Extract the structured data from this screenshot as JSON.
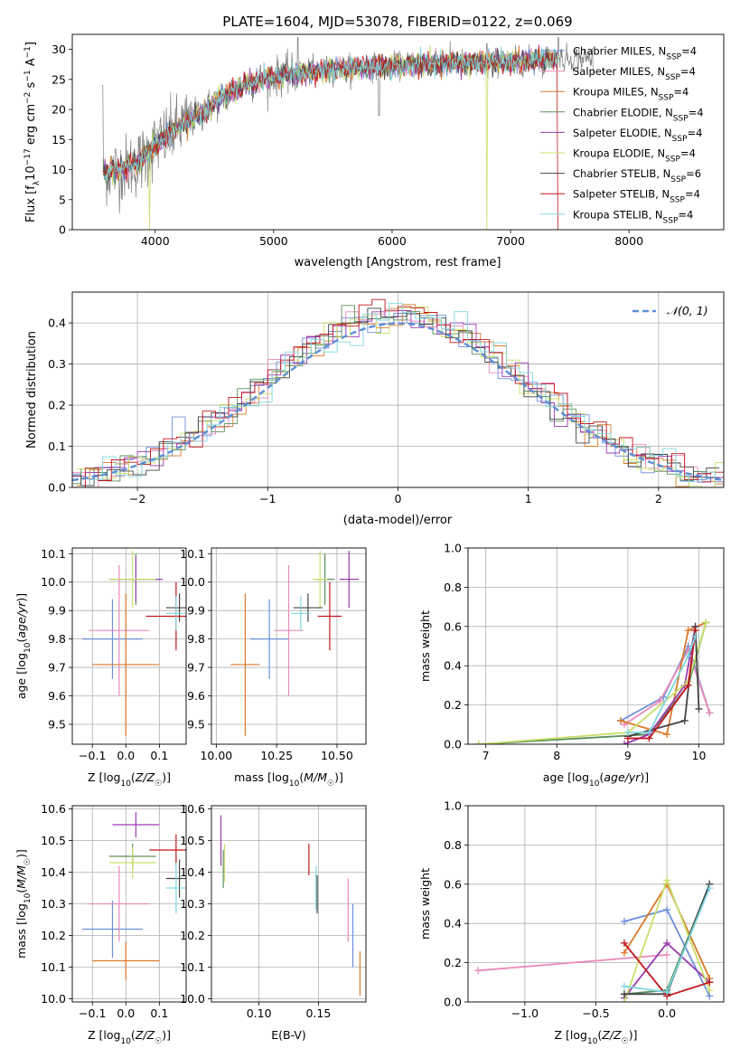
{
  "figure_title": "PLATE=1604, MJD=53078, FIBERID=0122, z=0.069",
  "models": [
    {
      "name": "Chabrier MILES",
      "nssp": "4",
      "color": "#6b8fd9"
    },
    {
      "name": "Salpeter MILES",
      "nssp": "4",
      "color": "#e88aba"
    },
    {
      "name": "Kroupa MILES",
      "nssp": "4",
      "color": "#d97a2b"
    },
    {
      "name": "Chabrier ELODIE",
      "nssp": "4",
      "color": "#5a8f5a"
    },
    {
      "name": "Salpeter ELODIE",
      "nssp": "4",
      "color": "#9b3bb0"
    },
    {
      "name": "Kroupa ELODIE",
      "nssp": "4",
      "color": "#c8e06a"
    },
    {
      "name": "Chabrier STELIB",
      "nssp": "6",
      "color": "#444444"
    },
    {
      "name": "Salpeter STELIB",
      "nssp": "4",
      "color": "#c0171c"
    },
    {
      "name": "Kroupa STELIB",
      "nssp": "4",
      "color": "#7fd6e0"
    }
  ],
  "chart_data": [
    {
      "id": "spectrum",
      "type": "line",
      "title": "PLATE=1604, MJD=53078, FIBERID=0122, z=0.069",
      "xlabel": "wavelength [Angstrom, rest frame]",
      "ylabel": "Flux [f_λ10^-17 erg cm^-2 s^-1 A^-1]",
      "xlim": [
        3300,
        8800
      ],
      "ylim": [
        0,
        32.5
      ],
      "xticks": [
        4000,
        5000,
        6000,
        7000,
        8000
      ],
      "yticks": [
        0,
        5,
        10,
        15,
        20,
        25,
        30
      ],
      "data_color": "#808080",
      "continuum": [
        [
          3550,
          9.5
        ],
        [
          3700,
          10
        ],
        [
          3850,
          11
        ],
        [
          4000,
          14
        ],
        [
          4200,
          17
        ],
        [
          4400,
          19.5
        ],
        [
          4600,
          22.5
        ],
        [
          4800,
          24.5
        ],
        [
          5000,
          25.5
        ],
        [
          5200,
          26
        ],
        [
          5500,
          26.8
        ],
        [
          6000,
          27.3
        ],
        [
          6500,
          27.8
        ],
        [
          7000,
          28
        ],
        [
          7400,
          28.5
        ]
      ],
      "model_end": 7400,
      "data_end": 7700,
      "drops": [
        [
          3950,
          3
        ],
        [
          6800,
          0
        ],
        [
          7400,
          0
        ]
      ]
    },
    {
      "id": "residuals",
      "type": "step",
      "xlabel": "(data-model)/error",
      "ylabel": "Normed distribution",
      "xlim": [
        -2.5,
        2.5
      ],
      "ylim": [
        0,
        0.475
      ],
      "xticks": [
        -2,
        -1,
        0,
        1,
        2
      ],
      "yticks": [
        0.0,
        0.1,
        0.2,
        0.3,
        0.4
      ],
      "bin_width": 0.1,
      "gaussian_label": "𝒩(0, 1)",
      "gaussian_color": "#5f8fd6"
    },
    {
      "id": "age_vs_Z",
      "type": "errorbar",
      "xlabel": "Z [log10(Z/Z☉)]",
      "ylabel": "age  [log10(age/yr)]",
      "xlim": [
        -0.16,
        0.18
      ],
      "ylim": [
        9.43,
        10.12
      ],
      "xticks": [
        -0.1,
        0.0,
        0.1
      ],
      "yticks": [
        9.5,
        9.6,
        9.7,
        9.8,
        9.9,
        10.0,
        10.1
      ],
      "points": [
        {
          "x": -0.04,
          "y": 9.8,
          "xerr": 0.09,
          "yerr": 0.14
        },
        {
          "x": -0.02,
          "y": 9.83,
          "xerr": 0.09,
          "yerr": 0.23
        },
        {
          "x": 0.0,
          "y": 9.71,
          "xerr": 0.1,
          "yerr": 0.25
        },
        {
          "x": 0.03,
          "y": 10.01,
          "xerr": 0.07,
          "yerr": 0.09
        },
        {
          "x": 0.03,
          "y": 10.01,
          "xerr": 0.08,
          "yerr": 0.08
        },
        {
          "x": 0.02,
          "y": 10.01,
          "xerr": 0.07,
          "yerr": 0.1
        },
        {
          "x": 0.16,
          "y": 9.91,
          "xerr": 0.04,
          "yerr": 0.05
        },
        {
          "x": 0.15,
          "y": 9.88,
          "xerr": 0.09,
          "yerr": 0.12
        },
        {
          "x": 0.15,
          "y": 9.89,
          "xerr": 0.03,
          "yerr": 0.06
        }
      ]
    },
    {
      "id": "age_vs_mass",
      "type": "errorbar",
      "xlabel": "mass [log10(M/M☉)]",
      "ylabel": "",
      "xlim": [
        9.98,
        10.62
      ],
      "ylim": [
        9.43,
        10.12
      ],
      "xticks": [
        10.0,
        10.25,
        10.5
      ],
      "yticks": [
        9.5,
        9.6,
        9.7,
        9.8,
        9.9,
        10.0,
        10.1
      ],
      "points": [
        {
          "x": 10.22,
          "y": 9.8,
          "xerr": 0.08,
          "yerr": 0.14
        },
        {
          "x": 10.3,
          "y": 9.83,
          "xerr": 0.06,
          "yerr": 0.23
        },
        {
          "x": 10.12,
          "y": 9.71,
          "xerr": 0.06,
          "yerr": 0.25
        },
        {
          "x": 10.45,
          "y": 10.01,
          "xerr": 0.04,
          "yerr": 0.09
        },
        {
          "x": 10.55,
          "y": 10.01,
          "xerr": 0.04,
          "yerr": 0.1
        },
        {
          "x": 10.43,
          "y": 10.01,
          "xerr": 0.03,
          "yerr": 0.1
        },
        {
          "x": 10.38,
          "y": 9.91,
          "xerr": 0.06,
          "yerr": 0.05
        },
        {
          "x": 10.47,
          "y": 9.88,
          "xerr": 0.05,
          "yerr": 0.12
        },
        {
          "x": 10.35,
          "y": 9.89,
          "xerr": 0.04,
          "yerr": 0.06
        }
      ]
    },
    {
      "id": "weight_vs_age",
      "type": "line",
      "xlabel": "age  [log10(age/yr)]",
      "ylabel": "mass weight",
      "xlim": [
        6.75,
        10.35
      ],
      "ylim": [
        0,
        1
      ],
      "xticks": [
        7,
        8,
        9,
        10
      ],
      "yticks": [
        0.0,
        0.2,
        0.4,
        0.6,
        0.8,
        1.0
      ],
      "series": [
        {
          "points": [
            [
              8.9,
              0.12
            ],
            [
              9.5,
              0.24
            ],
            [
              9.85,
              0.5
            ],
            [
              10.15,
              0.16
            ]
          ]
        },
        {
          "points": [
            [
              8.95,
              0.1
            ],
            [
              9.45,
              0.22
            ],
            [
              9.85,
              0.48
            ],
            [
              10.15,
              0.16
            ]
          ]
        },
        {
          "points": [
            [
              8.9,
              0.12
            ],
            [
              9.55,
              0.05
            ],
            [
              9.85,
              0.58
            ],
            [
              10.1,
              0.62
            ]
          ]
        },
        {
          "points": [
            [
              6.9,
              0.0
            ],
            [
              9.3,
              0.05
            ],
            [
              9.85,
              0.3
            ],
            [
              10.1,
              0.62
            ]
          ]
        },
        {
          "points": [
            [
              8.95,
              0.0
            ],
            [
              9.3,
              0.05
            ],
            [
              9.8,
              0.3
            ],
            [
              9.95,
              0.6
            ]
          ]
        },
        {
          "points": [
            [
              6.9,
              0.0
            ],
            [
              9.0,
              0.06
            ],
            [
              9.85,
              0.32
            ],
            [
              10.1,
              0.62
            ]
          ]
        },
        {
          "points": [
            [
              9.0,
              0.04
            ],
            [
              9.8,
              0.12
            ],
            [
              9.95,
              0.6
            ],
            [
              10.0,
              0.18
            ]
          ]
        },
        {
          "points": [
            [
              9.0,
              0.03
            ],
            [
              9.3,
              0.03
            ],
            [
              9.85,
              0.3
            ],
            [
              9.95,
              0.58
            ]
          ]
        },
        {
          "points": [
            [
              9.0,
              0.06
            ],
            [
              9.3,
              0.06
            ],
            [
              9.85,
              0.45
            ],
            [
              9.95,
              0.55
            ]
          ]
        }
      ]
    },
    {
      "id": "mass_vs_Z",
      "type": "errorbar",
      "xlabel": "Z [log10(Z/Z☉)]",
      "ylabel": "mass [log10(M/M☉)]",
      "xlim": [
        -0.16,
        0.18
      ],
      "ylim": [
        9.99,
        10.61
      ],
      "xticks": [
        -0.1,
        0.0,
        0.1
      ],
      "yticks": [
        10.0,
        10.1,
        10.2,
        10.3,
        10.4,
        10.5,
        10.6
      ],
      "points": [
        {
          "x": -0.04,
          "y": 10.22,
          "xerr": 0.09,
          "yerr": 0.09
        },
        {
          "x": -0.02,
          "y": 10.3,
          "xerr": 0.09,
          "yerr": 0.12
        },
        {
          "x": 0.0,
          "y": 10.12,
          "xerr": 0.1,
          "yerr": 0.06
        },
        {
          "x": 0.02,
          "y": 10.45,
          "xerr": 0.07,
          "yerr": 0.04
        },
        {
          "x": 0.03,
          "y": 10.55,
          "xerr": 0.07,
          "yerr": 0.04
        },
        {
          "x": 0.02,
          "y": 10.43,
          "xerr": 0.07,
          "yerr": 0.05
        },
        {
          "x": 0.16,
          "y": 10.38,
          "xerr": 0.04,
          "yerr": 0.06
        },
        {
          "x": 0.15,
          "y": 10.47,
          "xerr": 0.08,
          "yerr": 0.05
        },
        {
          "x": 0.15,
          "y": 10.35,
          "xerr": 0.03,
          "yerr": 0.08
        }
      ]
    },
    {
      "id": "mass_vs_ebv",
      "type": "errorbar",
      "xlabel": "E(B-V)",
      "ylabel": "",
      "xlim": [
        0.06,
        0.19
      ],
      "ylim": [
        9.99,
        10.61
      ],
      "xticks": [
        0.1,
        0.15
      ],
      "yticks": [
        10.0,
        10.1,
        10.2,
        10.3,
        10.4,
        10.5,
        10.6
      ],
      "points": [
        {
          "x": 0.179,
          "y": 10.2,
          "yerr": 0.1
        },
        {
          "x": 0.175,
          "y": 10.28,
          "yerr": 0.1
        },
        {
          "x": 0.185,
          "y": 10.08,
          "yerr": 0.07
        },
        {
          "x": 0.07,
          "y": 10.41,
          "yerr": 0.06
        },
        {
          "x": 0.068,
          "y": 10.5,
          "yerr": 0.08
        },
        {
          "x": 0.071,
          "y": 10.43,
          "yerr": 0.06
        },
        {
          "x": 0.149,
          "y": 10.33,
          "yerr": 0.06
        },
        {
          "x": 0.142,
          "y": 10.44,
          "yerr": 0.05
        },
        {
          "x": 0.148,
          "y": 10.35,
          "yerr": 0.07
        }
      ]
    },
    {
      "id": "weight_vs_Z",
      "type": "line",
      "xlabel": "Z [log10(Z/Z☉)]",
      "ylabel": "mass weight",
      "xlim": [
        -1.4,
        0.4
      ],
      "ylim": [
        0,
        1
      ],
      "xticks": [
        -1.0,
        -0.5,
        0.0
      ],
      "yticks": [
        0.0,
        0.2,
        0.4,
        0.6,
        0.8,
        1.0
      ],
      "series": [
        {
          "points": [
            [
              -0.3,
              0.41
            ],
            [
              0.0,
              0.47
            ],
            [
              0.3,
              0.03
            ]
          ]
        },
        {
          "points": [
            [
              -1.33,
              0.16
            ],
            [
              0.0,
              0.24
            ]
          ]
        },
        {
          "points": [
            [
              -0.3,
              0.25
            ],
            [
              0.0,
              0.6
            ],
            [
              0.3,
              0.12
            ]
          ]
        },
        {
          "points": [
            [
              -0.3,
              0.04
            ],
            [
              0.0,
              0.06
            ],
            [
              0.3,
              0.6
            ]
          ]
        },
        {
          "points": [
            [
              -0.3,
              0.02
            ],
            [
              0.0,
              0.3
            ],
            [
              0.3,
              0.1
            ]
          ]
        },
        {
          "points": [
            [
              -0.3,
              0.0
            ],
            [
              0.0,
              0.62
            ],
            [
              0.3,
              0.06
            ]
          ]
        },
        {
          "points": [
            [
              -0.3,
              0.04
            ],
            [
              0.0,
              0.04
            ],
            [
              0.3,
              0.6
            ]
          ]
        },
        {
          "points": [
            [
              -0.3,
              0.3
            ],
            [
              0.0,
              0.03
            ],
            [
              0.3,
              0.1
            ]
          ]
        },
        {
          "points": [
            [
              -0.3,
              0.08
            ],
            [
              0.0,
              0.05
            ],
            [
              0.3,
              0.58
            ]
          ]
        }
      ]
    }
  ]
}
